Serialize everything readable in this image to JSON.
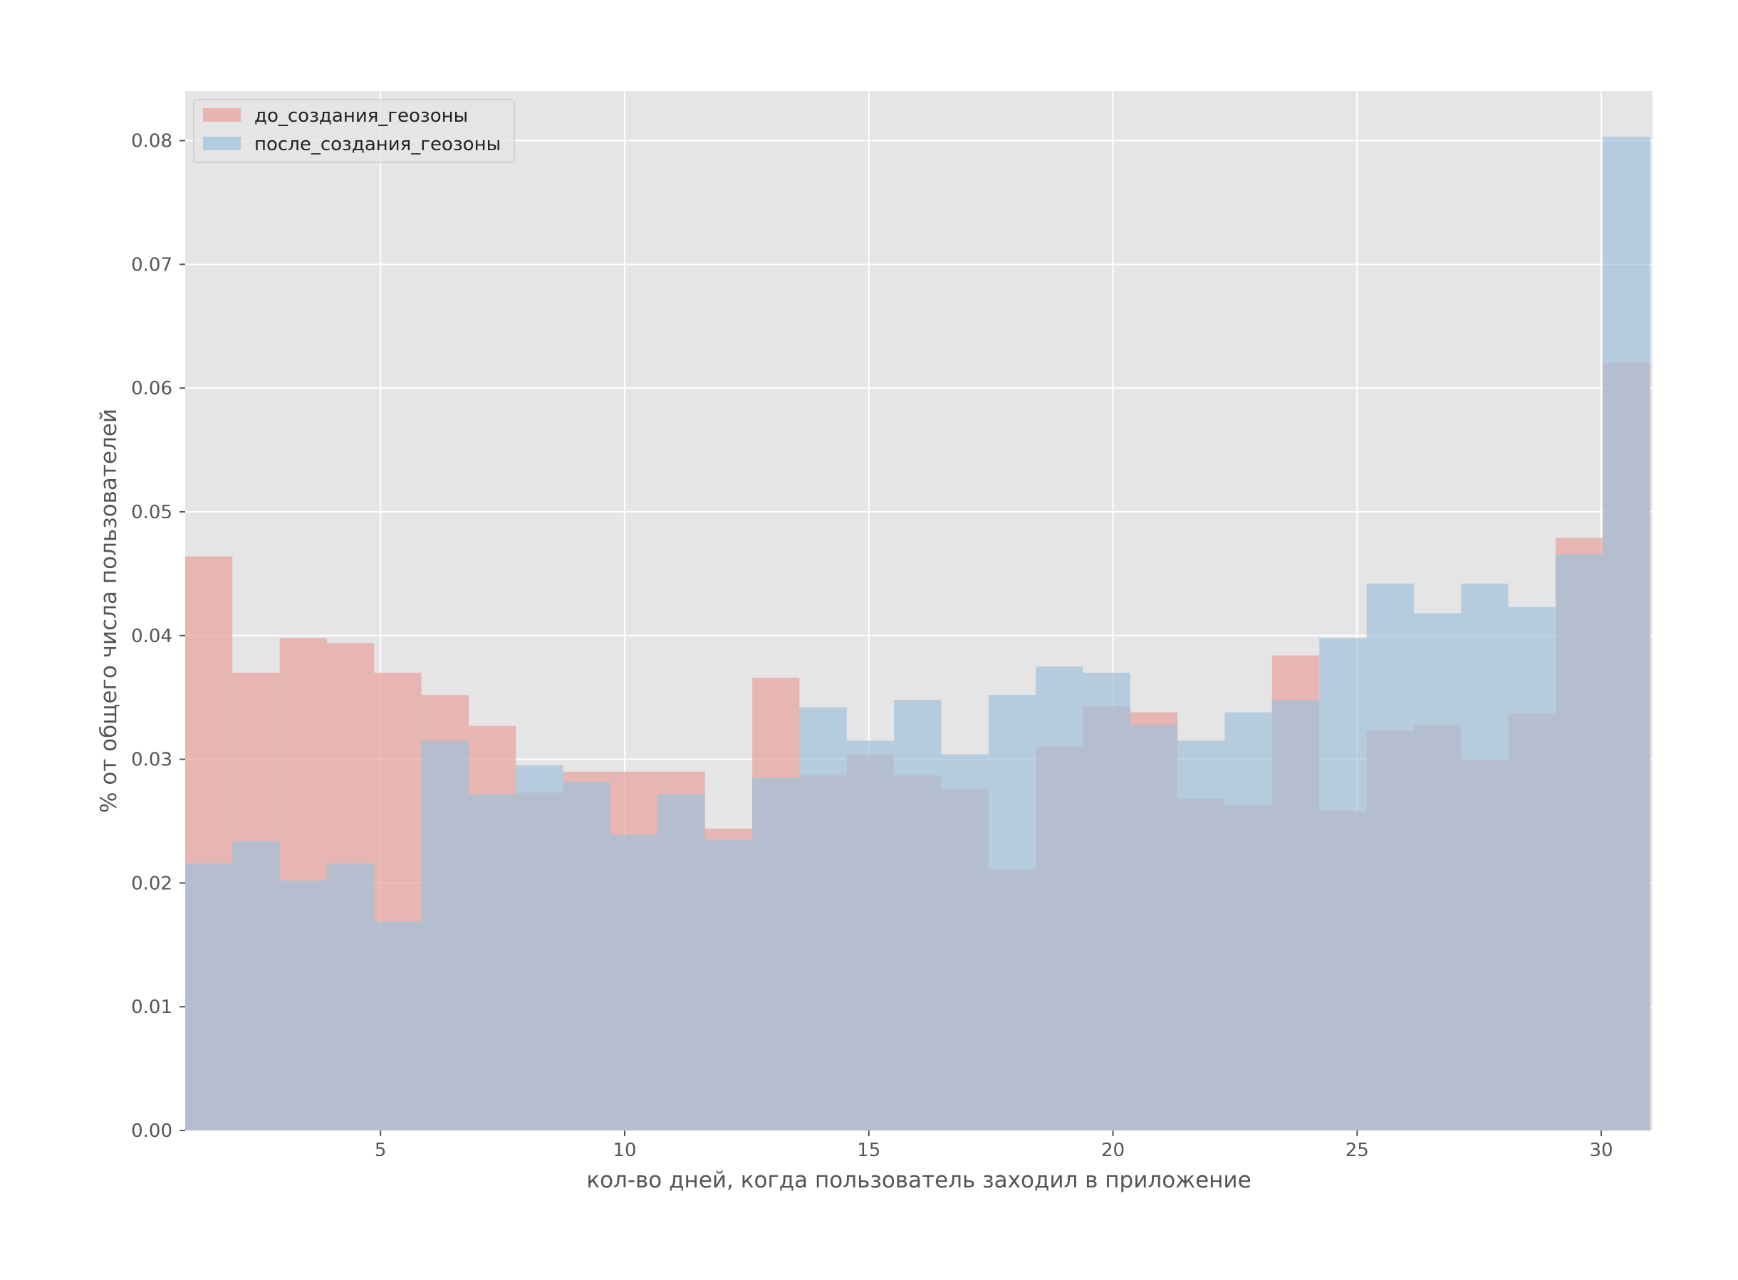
{
  "chart_data": {
    "type": "bar",
    "subtype": "overlapping-histogram",
    "xlabel": "кол-во дней, когда пользователь заходил в приложение",
    "ylabel": "% от общего числа пользователей",
    "xlim": [
      1,
      31.05
    ],
    "ylim": [
      0,
      0.084
    ],
    "xticks": [
      5,
      10,
      15,
      20,
      25,
      30
    ],
    "yticks": [
      0.0,
      0.01,
      0.02,
      0.03,
      0.04,
      0.05,
      0.06,
      0.07,
      0.08
    ],
    "ytick_labels": [
      "0.00",
      "0.01",
      "0.02",
      "0.03",
      "0.04",
      "0.05",
      "0.06",
      "0.07",
      "0.08"
    ],
    "bin_edges": [
      1.0,
      1.967,
      2.935,
      3.903,
      4.871,
      5.839,
      6.806,
      7.774,
      8.742,
      9.71,
      10.677,
      11.645,
      12.613,
      13.581,
      14.548,
      15.516,
      16.484,
      17.452,
      18.419,
      19.387,
      20.355,
      21.323,
      22.29,
      23.258,
      24.226,
      25.194,
      26.161,
      27.129,
      28.097,
      29.065,
      30.032,
      31.0
    ],
    "grid": true,
    "legend_position": "top-left",
    "series": [
      {
        "name": "до_создания_геозоны",
        "color": "#e8a39c",
        "values": [
          0.0464,
          0.037,
          0.0398,
          0.0394,
          0.037,
          0.0352,
          0.0327,
          0.0273,
          0.029,
          0.029,
          0.029,
          0.0244,
          0.0366,
          0.0287,
          0.0304,
          0.0287,
          0.0276,
          0.0211,
          0.031,
          0.0343,
          0.0338,
          0.0268,
          0.0263,
          0.0384,
          0.0258,
          0.0323,
          0.0328,
          0.03,
          0.0337,
          0.0479,
          0.062
        ]
      },
      {
        "name": "после_создания_геозоны",
        "color": "#9fc2dc",
        "values": [
          0.0216,
          0.0234,
          0.0202,
          0.0216,
          0.0169,
          0.0315,
          0.0272,
          0.0295,
          0.0282,
          0.0239,
          0.0272,
          0.0235,
          0.0285,
          0.0342,
          0.0315,
          0.0348,
          0.0304,
          0.0352,
          0.0375,
          0.037,
          0.0328,
          0.0315,
          0.0338,
          0.0348,
          0.0398,
          0.0442,
          0.0418,
          0.0442,
          0.0423,
          0.0466,
          0.0803
        ]
      }
    ]
  }
}
